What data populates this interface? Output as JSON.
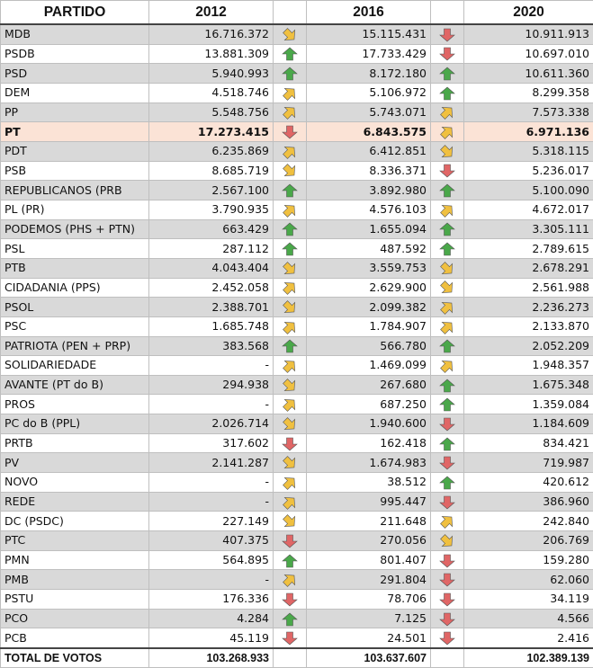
{
  "headers": [
    "PARTIDO",
    "2012",
    "2016",
    "2020"
  ],
  "colors": {
    "up": "#4aa84a",
    "down": "#e06666",
    "diag": "#f0c040"
  },
  "rows": [
    {
      "party": "MDB",
      "v2012": "16.716.372",
      "a2016": "diag-down",
      "v2016": "15.115.431",
      "a2020": "down",
      "v2020": "10.911.913"
    },
    {
      "party": "PSDB",
      "v2012": "13.881.309",
      "a2016": "up",
      "v2016": "17.733.429",
      "a2020": "down",
      "v2020": "10.697.010"
    },
    {
      "party": "PSD",
      "v2012": "5.940.993",
      "a2016": "up",
      "v2016": "8.172.180",
      "a2020": "up",
      "v2020": "10.611.360"
    },
    {
      "party": "DEM",
      "v2012": "4.518.746",
      "a2016": "diag-up",
      "v2016": "5.106.972",
      "a2020": "up",
      "v2020": "8.299.358"
    },
    {
      "party": "PP",
      "v2012": "5.548.756",
      "a2016": "diag-up",
      "v2016": "5.743.071",
      "a2020": "diag-up",
      "v2020": "7.573.338"
    },
    {
      "party": "PT",
      "v2012": "17.273.415",
      "a2016": "down",
      "v2016": "6.843.575",
      "a2020": "diag-up",
      "v2020": "6.971.136",
      "highlight": true
    },
    {
      "party": "PDT",
      "v2012": "6.235.869",
      "a2016": "diag-up",
      "v2016": "6.412.851",
      "a2020": "diag-down",
      "v2020": "5.318.115"
    },
    {
      "party": "PSB",
      "v2012": "8.685.719",
      "a2016": "diag-down",
      "v2016": "8.336.371",
      "a2020": "down",
      "v2020": "5.236.017"
    },
    {
      "party": "REPUBLICANOS (PRB",
      "v2012": "2.567.100",
      "a2016": "up",
      "v2016": "3.892.980",
      "a2020": "up",
      "v2020": "5.100.090"
    },
    {
      "party": "PL (PR)",
      "v2012": "3.790.935",
      "a2016": "diag-up",
      "v2016": "4.576.103",
      "a2020": "diag-up",
      "v2020": "4.672.017"
    },
    {
      "party": "PODEMOS (PHS + PTN)",
      "v2012": "663.429",
      "a2016": "up",
      "v2016": "1.655.094",
      "a2020": "up",
      "v2020": "3.305.111"
    },
    {
      "party": "PSL",
      "v2012": "287.112",
      "a2016": "up",
      "v2016": "487.592",
      "a2020": "up",
      "v2020": "2.789.615"
    },
    {
      "party": "PTB",
      "v2012": "4.043.404",
      "a2016": "diag-down",
      "v2016": "3.559.753",
      "a2020": "diag-down",
      "v2020": "2.678.291"
    },
    {
      "party": "CIDADANIA (PPS)",
      "v2012": "2.452.058",
      "a2016": "diag-up",
      "v2016": "2.629.900",
      "a2020": "diag-down",
      "v2020": "2.561.988"
    },
    {
      "party": "PSOL",
      "v2012": "2.388.701",
      "a2016": "diag-down",
      "v2016": "2.099.382",
      "a2020": "diag-up",
      "v2020": "2.236.273"
    },
    {
      "party": "PSC",
      "v2012": "1.685.748",
      "a2016": "diag-up",
      "v2016": "1.784.907",
      "a2020": "diag-up",
      "v2020": "2.133.870"
    },
    {
      "party": "PATRIOTA (PEN + PRP)",
      "v2012": "383.568",
      "a2016": "up",
      "v2016": "566.780",
      "a2020": "up",
      "v2020": "2.052.209"
    },
    {
      "party": "SOLIDARIEDADE",
      "v2012": "-",
      "a2016": "diag-up",
      "v2016": "1.469.099",
      "a2020": "diag-up",
      "v2020": "1.948.357"
    },
    {
      "party": "AVANTE (PT do B)",
      "v2012": "294.938",
      "a2016": "diag-down",
      "v2016": "267.680",
      "a2020": "up",
      "v2020": "1.675.348"
    },
    {
      "party": "PROS",
      "v2012": "-",
      "a2016": "diag-up",
      "v2016": "687.250",
      "a2020": "up",
      "v2020": "1.359.084"
    },
    {
      "party": "PC do B (PPL)",
      "v2012": "2.026.714",
      "a2016": "diag-down",
      "v2016": "1.940.600",
      "a2020": "down",
      "v2020": "1.184.609"
    },
    {
      "party": "PRTB",
      "v2012": "317.602",
      "a2016": "down",
      "v2016": "162.418",
      "a2020": "up",
      "v2020": "834.421"
    },
    {
      "party": "PV",
      "v2012": "2.141.287",
      "a2016": "diag-down",
      "v2016": "1.674.983",
      "a2020": "down",
      "v2020": "719.987"
    },
    {
      "party": "NOVO",
      "v2012": "-",
      "a2016": "diag-up",
      "v2016": "38.512",
      "a2020": "up",
      "v2020": "420.612"
    },
    {
      "party": "REDE",
      "v2012": "-",
      "a2016": "diag-up",
      "v2016": "995.447",
      "a2020": "down",
      "v2020": "386.960"
    },
    {
      "party": "DC (PSDC)",
      "v2012": "227.149",
      "a2016": "diag-down",
      "v2016": "211.648",
      "a2020": "diag-up",
      "v2020": "242.840"
    },
    {
      "party": "PTC",
      "v2012": "407.375",
      "a2016": "down",
      "v2016": "270.056",
      "a2020": "diag-down",
      "v2020": "206.769"
    },
    {
      "party": "PMN",
      "v2012": "564.895",
      "a2016": "up",
      "v2016": "801.407",
      "a2020": "down",
      "v2020": "159.280"
    },
    {
      "party": "PMB",
      "v2012": "-",
      "a2016": "diag-up",
      "v2016": "291.804",
      "a2020": "down",
      "v2020": "62.060"
    },
    {
      "party": "PSTU",
      "v2012": "176.336",
      "a2016": "down",
      "v2016": "78.706",
      "a2020": "down",
      "v2020": "34.119"
    },
    {
      "party": "PCO",
      "v2012": "4.284",
      "a2016": "up",
      "v2016": "7.125",
      "a2020": "down",
      "v2020": "4.566"
    },
    {
      "party": "PCB",
      "v2012": "45.119",
      "a2016": "down",
      "v2016": "24.501",
      "a2020": "down",
      "v2020": "2.416"
    }
  ],
  "total": {
    "label": "TOTAL DE VOTOS",
    "v2012": "103.268.933",
    "v2016": "103.637.607",
    "v2020": "102.389.139"
  }
}
